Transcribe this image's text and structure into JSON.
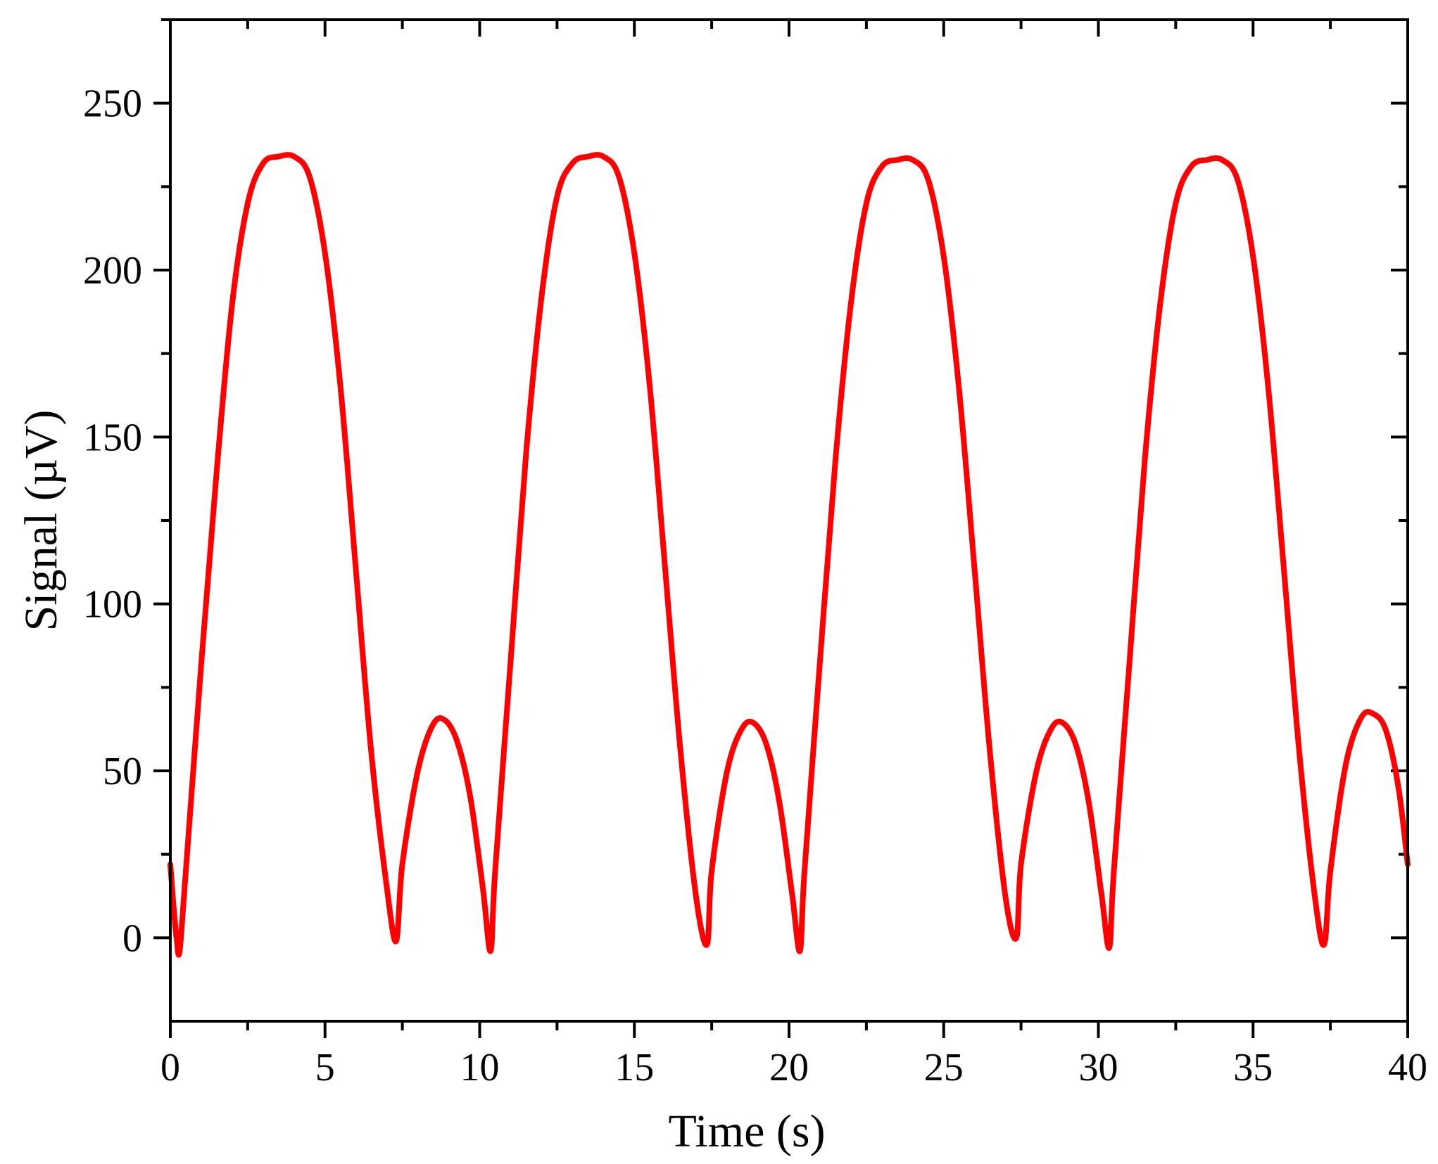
{
  "chart_data": {
    "type": "line",
    "title": "",
    "xlabel": "Time (s)",
    "ylabel": "Signal (µV)",
    "xlim": [
      0,
      40
    ],
    "ylim": [
      -25,
      275
    ],
    "xticks": [
      0,
      5,
      10,
      15,
      20,
      25,
      30,
      35,
      40
    ],
    "xtick_labels": [
      "0",
      "5",
      "10",
      "15",
      "20",
      "25",
      "30",
      "35",
      "40"
    ],
    "yticks": [
      0,
      50,
      100,
      150,
      200,
      250
    ],
    "ytick_labels": [
      "0",
      "50",
      "100",
      "150",
      "200",
      "250"
    ],
    "x_minor_step": 2.5,
    "y_minor_step": 25,
    "grid": false,
    "legend": "none",
    "series": [
      {
        "color": "#ff0000",
        "x": [
          0,
          0.1,
          0.2,
          0.3,
          0.5,
          1,
          1.5,
          2,
          2.5,
          3,
          3.5,
          4,
          4.5,
          5,
          5.5,
          6,
          6.5,
          7,
          7.3,
          7.5,
          8,
          8.5,
          8.9,
          9.3,
          9.7,
          10.1,
          10.35,
          10.5,
          11,
          11.5,
          12,
          12.5,
          13,
          13.5,
          14,
          14.5,
          15,
          15.5,
          16,
          16.5,
          17,
          17.35,
          17.5,
          18,
          18.5,
          18.9,
          19.3,
          19.7,
          20.1,
          20.35,
          20.5,
          21,
          21.5,
          22,
          22.5,
          23,
          23.5,
          24,
          24.5,
          25,
          25.5,
          26,
          26.5,
          27,
          27.35,
          27.5,
          28,
          28.5,
          28.9,
          29.3,
          29.7,
          30.1,
          30.35,
          30.5,
          31,
          31.5,
          32,
          32.5,
          33,
          33.5,
          34,
          34.5,
          35,
          35.5,
          36,
          36.5,
          37,
          37.3,
          37.5,
          38,
          38.5,
          38.9,
          39.3,
          39.7,
          40
        ],
        "y": [
          22,
          10,
          0,
          -4,
          20,
          82,
          140,
          190,
          220,
          232,
          234,
          234,
          228,
          205,
          165,
          110,
          55,
          15,
          -1,
          22,
          50,
          64,
          65,
          58,
          42,
          15,
          -4,
          20,
          83,
          145,
          192,
          222,
          232,
          234,
          234,
          228,
          205,
          165,
          110,
          55,
          12,
          -2,
          20,
          50,
          63,
          64,
          57,
          40,
          13,
          -4,
          20,
          83,
          143,
          190,
          220,
          231,
          233,
          233,
          227,
          204,
          164,
          110,
          55,
          12,
          0,
          22,
          50,
          63,
          64,
          57,
          40,
          13,
          -3,
          20,
          82,
          143,
          190,
          220,
          231,
          233,
          233,
          227,
          204,
          164,
          110,
          55,
          12,
          -2,
          20,
          52,
          66,
          67,
          62,
          45,
          22
        ]
      }
    ]
  }
}
